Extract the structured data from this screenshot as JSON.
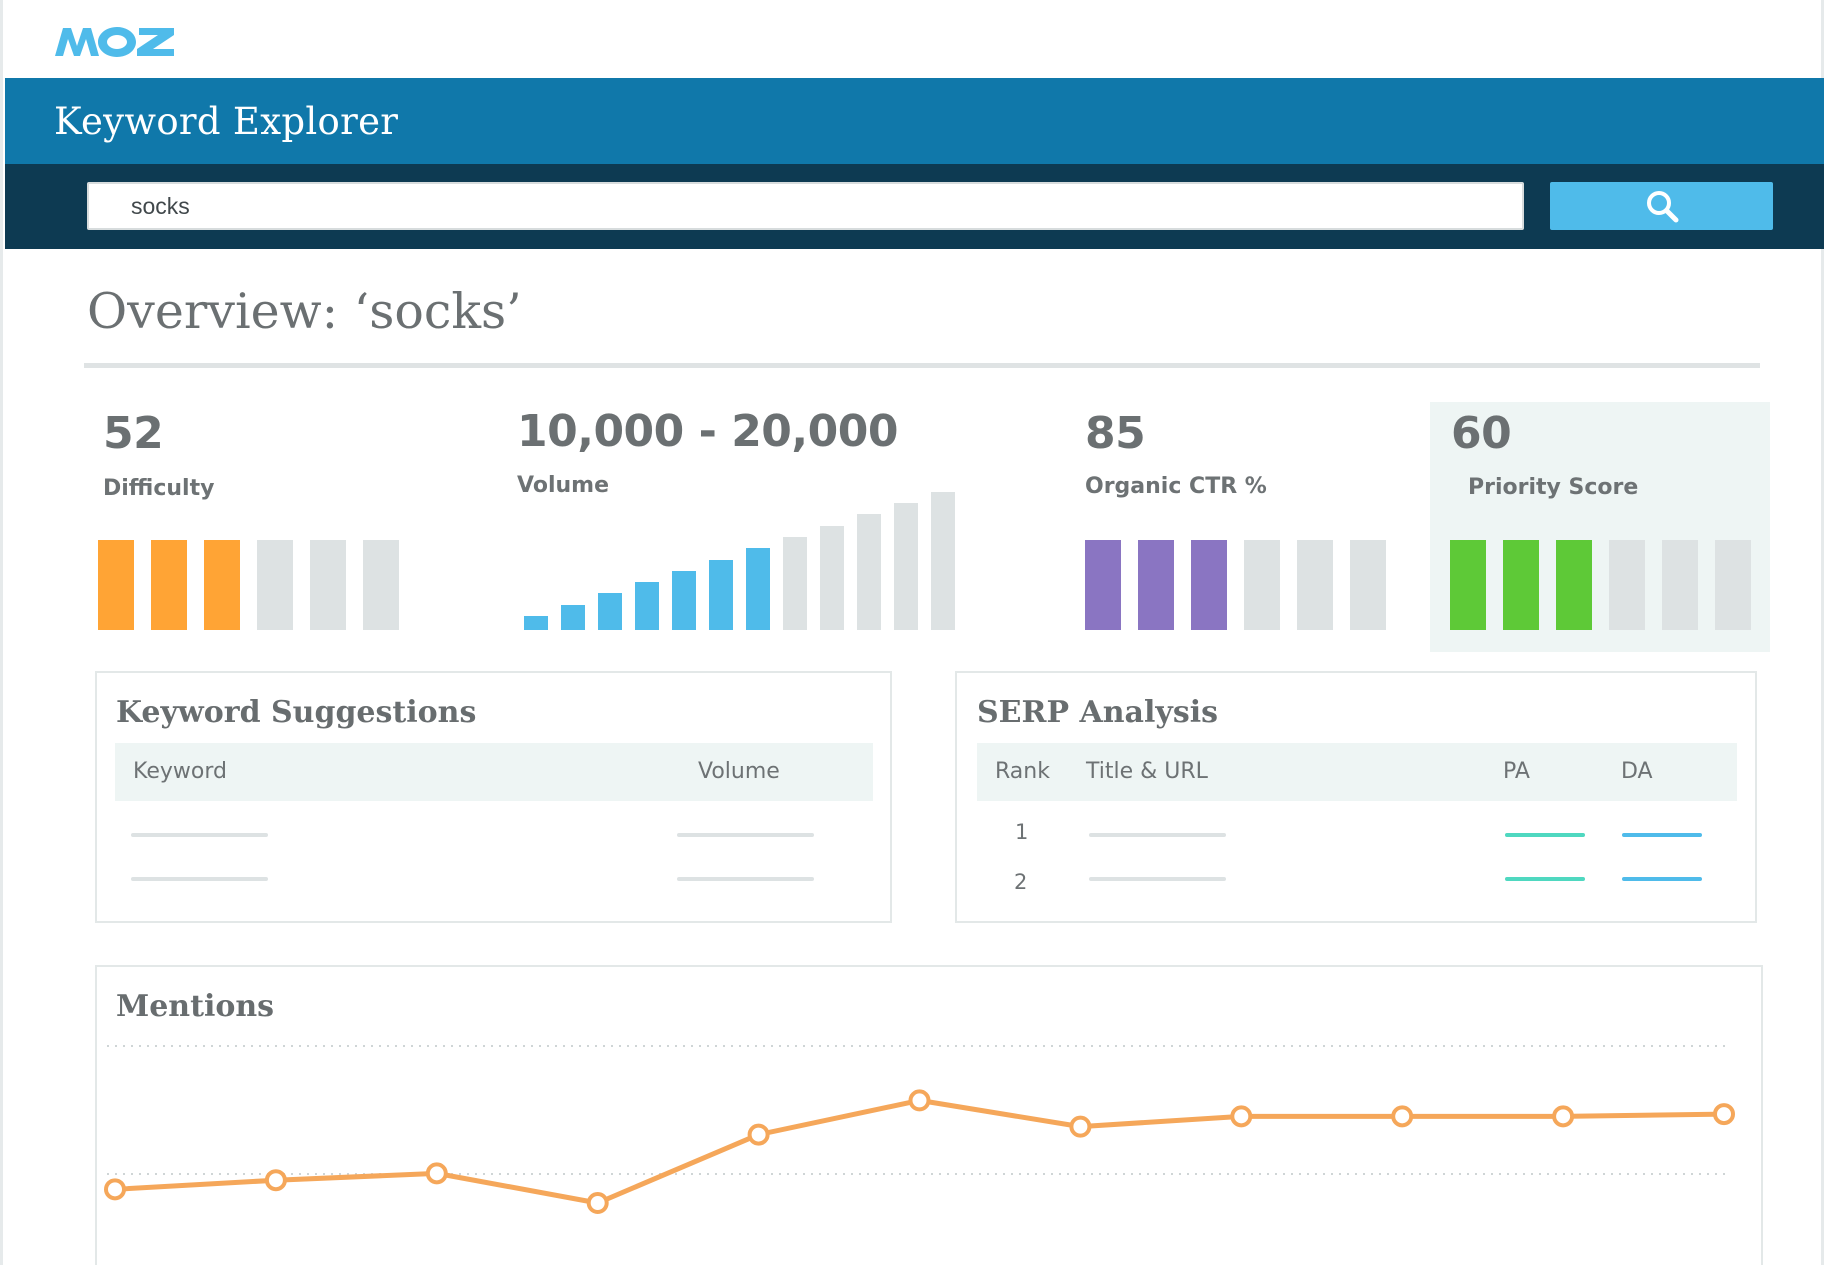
{
  "brand": {
    "logo_text": "MOZ",
    "logo_color": "#4fbbea"
  },
  "app": {
    "title": "Keyword Explorer"
  },
  "search": {
    "value": "socks",
    "button_icon": "search-icon"
  },
  "overview": {
    "title": "Overview: ‘socks’"
  },
  "metrics": {
    "difficulty": {
      "value": "52",
      "label": "Difficulty",
      "color": "#ffa435",
      "filled": 3,
      "total": 6
    },
    "volume": {
      "value": "10,000 - 20,000",
      "label": "Volume",
      "color": "#4fbbea",
      "filled": 7,
      "total": 12
    },
    "ctr": {
      "value": "85",
      "label": "Organic CTR %",
      "color": "#8a75c2",
      "filled": 3,
      "total": 6
    },
    "priority": {
      "value": "60",
      "label": "Priority Score",
      "color": "#5ec937",
      "filled": 3,
      "total": 6
    }
  },
  "keyword_suggestions": {
    "title": "Keyword Suggestions",
    "columns": [
      "Keyword",
      "Volume"
    ]
  },
  "serp_analysis": {
    "title": "SERP Analysis",
    "columns": [
      "Rank",
      "Title & URL",
      "PA",
      "DA"
    ],
    "ranks": [
      "1",
      "2"
    ],
    "pa_color": "#4fd8c0",
    "da_color": "#4fbbea"
  },
  "mentions": {
    "title": "Mentions",
    "line_color": "#f5a75a",
    "points": [
      0.12,
      0.2,
      0.26,
      0.0,
      0.6,
      0.9,
      0.67,
      0.76,
      0.76,
      0.76,
      0.78
    ]
  },
  "colors": {
    "inactive_bar": "#dde2e3",
    "header_blue": "#1078aa",
    "search_bar_bg": "#0d3a52"
  }
}
